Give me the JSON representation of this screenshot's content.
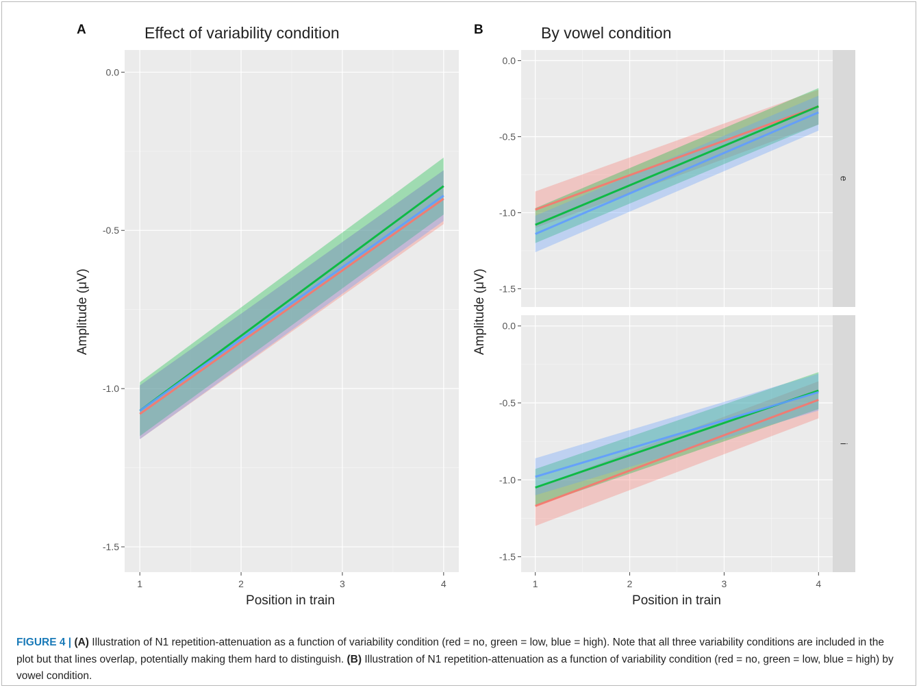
{
  "figure": {
    "panel_a_letter": "A",
    "panel_b_letter": "B",
    "caption": {
      "label": "FIGURE 4",
      "separator": " | ",
      "part_a_tag": "(A)",
      "part_a_text": " Illustration of N1 repetition-attenuation as a function of variability condition (red = no, green = low, blue = high). Note that all three variability conditions are included in the plot but that lines overlap, potentially making them hard to distinguish. ",
      "part_b_tag": "(B)",
      "part_b_text": " Illustration of N1 repetition-attenuation as a function of variability condition (red = no, green = low, blue = high) by vowel condition."
    }
  },
  "colors": {
    "panel_bg": "#ebebeb",
    "grid": "#ffffff",
    "strip_bg": "#d9d9d9",
    "no": "#f8766d",
    "low": "#00ba38",
    "high": "#619cff"
  },
  "chart_data": [
    {
      "type": "line",
      "title": "Effect of variability condition",
      "xlabel": "Position in train",
      "ylabel": "Amplitude (μV)",
      "x": [
        1,
        4
      ],
      "xticks": [
        "1",
        "2",
        "3",
        "4"
      ],
      "yticks": [
        "0.0",
        "-0.5",
        "-1.0",
        "-1.5"
      ],
      "xlim": [
        0.85,
        4.15
      ],
      "ylim": [
        -1.58,
        0.07
      ],
      "grid": true,
      "series": [
        {
          "condition": "no",
          "color": "#f8766d",
          "values": [
            -1.08,
            -0.4
          ],
          "lower": [
            -1.16,
            -0.48
          ],
          "upper": [
            -0.99,
            -0.31
          ]
        },
        {
          "condition": "low",
          "color": "#00ba38",
          "values": [
            -1.07,
            -0.36
          ],
          "lower": [
            -1.15,
            -0.45
          ],
          "upper": [
            -0.98,
            -0.27
          ]
        },
        {
          "condition": "high",
          "color": "#619cff",
          "values": [
            -1.07,
            -0.39
          ],
          "lower": [
            -1.16,
            -0.47
          ],
          "upper": [
            -0.99,
            -0.31
          ]
        }
      ]
    },
    {
      "type": "line",
      "title": "By vowel condition",
      "xlabel": "Position in train",
      "ylabel": "Amplitude (μV)",
      "xticks": [
        "1",
        "2",
        "3",
        "4"
      ],
      "xlim": [
        0.85,
        4.15
      ],
      "facets": [
        {
          "strip": "e",
          "ylim": [
            -1.62,
            0.07
          ],
          "yticks": [
            "0.0",
            "-0.5",
            "-1.0",
            "-1.5"
          ],
          "x": [
            1,
            4
          ],
          "series": [
            {
              "condition": "no",
              "color": "#f8766d",
              "values": [
                -0.98,
                -0.3
              ],
              "lower": [
                -1.1,
                -0.42
              ],
              "upper": [
                -0.86,
                -0.19
              ]
            },
            {
              "condition": "low",
              "color": "#00ba38",
              "values": [
                -1.08,
                -0.3
              ],
              "lower": [
                -1.2,
                -0.42
              ],
              "upper": [
                -0.97,
                -0.18
              ]
            },
            {
              "condition": "high",
              "color": "#619cff",
              "values": [
                -1.14,
                -0.34
              ],
              "lower": [
                -1.26,
                -0.46
              ],
              "upper": [
                -1.02,
                -0.23
              ]
            }
          ]
        },
        {
          "strip": "i",
          "ylim": [
            -1.6,
            0.07
          ],
          "yticks": [
            "0.0",
            "-0.5",
            "-1.0",
            "-1.5"
          ],
          "x": [
            1,
            4
          ],
          "series": [
            {
              "condition": "no",
              "color": "#f8766d",
              "values": [
                -1.17,
                -0.48
              ],
              "lower": [
                -1.3,
                -0.6
              ],
              "upper": [
                -1.05,
                -0.36
              ]
            },
            {
              "condition": "low",
              "color": "#00ba38",
              "values": [
                -1.05,
                -0.42
              ],
              "lower": [
                -1.17,
                -0.54
              ],
              "upper": [
                -0.93,
                -0.3
              ]
            },
            {
              "condition": "high",
              "color": "#619cff",
              "values": [
                -0.98,
                -0.43
              ],
              "lower": [
                -1.1,
                -0.55
              ],
              "upper": [
                -0.86,
                -0.31
              ]
            }
          ]
        }
      ]
    }
  ]
}
